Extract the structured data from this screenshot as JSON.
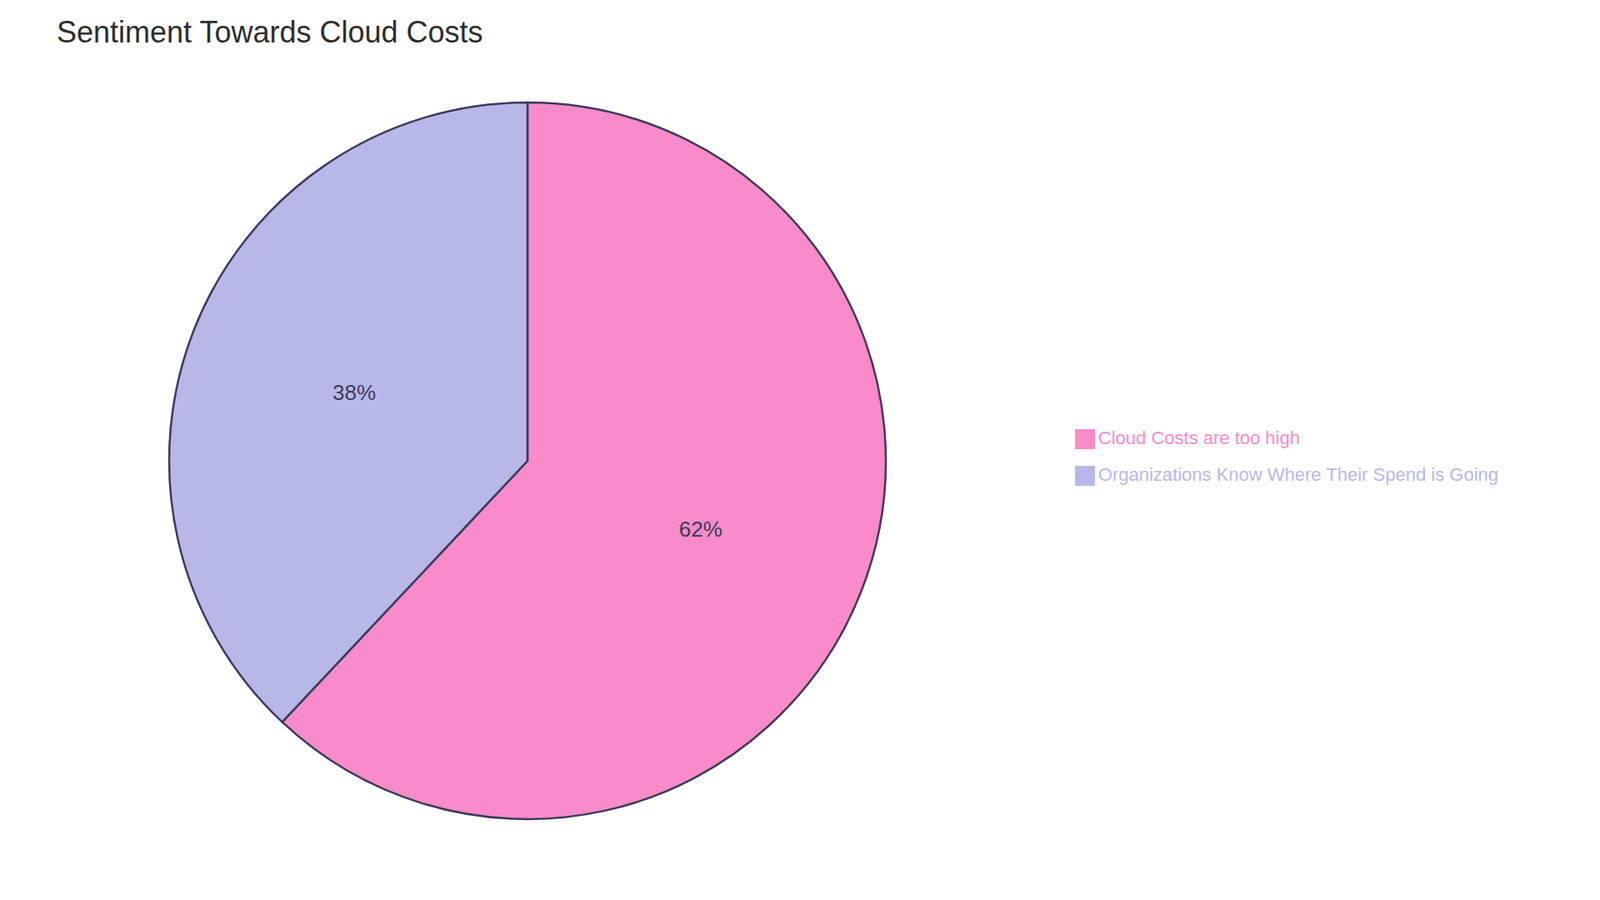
{
  "chart_data": {
    "type": "pie",
    "title": "Sentiment Towards Cloud Costs",
    "categories": [
      "Cloud Costs are too high",
      "Organizations Know Where Their Spend is Going"
    ],
    "values": [
      62,
      38
    ],
    "value_labels": [
      "62%",
      "38%"
    ],
    "colors": [
      "#F98BC8",
      "#B8B8E8"
    ],
    "data_labels": true,
    "legend": "right"
  }
}
